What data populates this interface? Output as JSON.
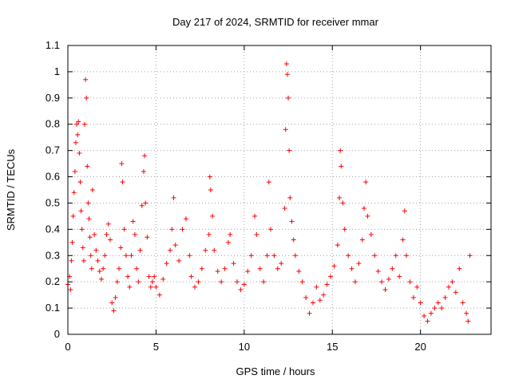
{
  "chart_data": {
    "type": "scatter",
    "title": "Day 217 of 2024, SRMTID for receiver mmar",
    "xlabel": "GPS time / hours",
    "ylabel": "SRMTID / TECUs",
    "xlim": [
      0,
      24
    ],
    "ylim": [
      0,
      1.1
    ],
    "x_ticks": [
      0,
      5,
      10,
      15,
      20
    ],
    "x_tick_labels": [
      "0",
      "5",
      "10",
      "15",
      "20"
    ],
    "y_ticks": [
      0,
      0.1,
      0.2,
      0.3,
      0.4,
      0.5,
      0.6,
      0.7,
      0.8,
      0.9,
      1,
      1.1
    ],
    "y_tick_labels": [
      "0",
      "0.1",
      "0.2",
      "0.3",
      "0.4",
      "0.5",
      "0.6",
      "0.7",
      "0.8",
      "0.9",
      "1",
      "1.1"
    ],
    "grid": true,
    "marker": "+",
    "series": [
      {
        "name": "SRMTID",
        "color": "#ff0000",
        "points": [
          [
            0.0,
            0.19
          ],
          [
            0.1,
            0.22
          ],
          [
            0.15,
            0.17
          ],
          [
            0.2,
            0.28
          ],
          [
            0.25,
            0.35
          ],
          [
            0.3,
            0.45
          ],
          [
            0.35,
            0.54
          ],
          [
            0.4,
            0.62
          ],
          [
            0.45,
            0.73
          ],
          [
            0.5,
            0.8
          ],
          [
            0.55,
            0.76
          ],
          [
            0.6,
            0.81
          ],
          [
            0.65,
            0.69
          ],
          [
            0.7,
            0.58
          ],
          [
            0.75,
            0.47
          ],
          [
            0.8,
            0.4
          ],
          [
            0.85,
            0.33
          ],
          [
            0.9,
            0.28
          ],
          [
            0.95,
            0.8
          ],
          [
            1.0,
            0.97
          ],
          [
            1.05,
            0.9
          ],
          [
            1.1,
            0.64
          ],
          [
            1.15,
            0.5
          ],
          [
            1.2,
            0.44
          ],
          [
            1.25,
            0.37
          ],
          [
            1.3,
            0.3
          ],
          [
            1.35,
            0.25
          ],
          [
            1.4,
            0.55
          ],
          [
            1.5,
            0.38
          ],
          [
            1.6,
            0.32
          ],
          [
            1.7,
            0.28
          ],
          [
            1.8,
            0.24
          ],
          [
            1.9,
            0.21
          ],
          [
            2.0,
            0.25
          ],
          [
            2.1,
            0.3
          ],
          [
            2.2,
            0.38
          ],
          [
            2.3,
            0.42
          ],
          [
            2.4,
            0.36
          ],
          [
            2.5,
            0.12
          ],
          [
            2.6,
            0.09
          ],
          [
            2.7,
            0.14
          ],
          [
            2.8,
            0.2
          ],
          [
            2.9,
            0.25
          ],
          [
            3.0,
            0.33
          ],
          [
            3.05,
            0.65
          ],
          [
            3.1,
            0.58
          ],
          [
            3.2,
            0.4
          ],
          [
            3.3,
            0.3
          ],
          [
            3.4,
            0.22
          ],
          [
            3.5,
            0.18
          ],
          [
            3.6,
            0.3
          ],
          [
            3.7,
            0.43
          ],
          [
            3.8,
            0.38
          ],
          [
            3.9,
            0.25
          ],
          [
            4.0,
            0.2
          ],
          [
            4.1,
            0.32
          ],
          [
            4.2,
            0.49
          ],
          [
            4.3,
            0.62
          ],
          [
            4.35,
            0.68
          ],
          [
            4.4,
            0.5
          ],
          [
            4.5,
            0.37
          ],
          [
            4.6,
            0.22
          ],
          [
            4.7,
            0.18
          ],
          [
            4.8,
            0.2
          ],
          [
            4.9,
            0.22
          ],
          [
            5.0,
            0.18
          ],
          [
            5.2,
            0.15
          ],
          [
            5.4,
            0.21
          ],
          [
            5.6,
            0.27
          ],
          [
            5.8,
            0.32
          ],
          [
            5.9,
            0.4
          ],
          [
            6.0,
            0.52
          ],
          [
            6.1,
            0.34
          ],
          [
            6.3,
            0.28
          ],
          [
            6.5,
            0.4
          ],
          [
            6.7,
            0.44
          ],
          [
            6.9,
            0.3
          ],
          [
            7.0,
            0.22
          ],
          [
            7.2,
            0.18
          ],
          [
            7.4,
            0.2
          ],
          [
            7.6,
            0.25
          ],
          [
            7.8,
            0.32
          ],
          [
            8.0,
            0.38
          ],
          [
            8.05,
            0.6
          ],
          [
            8.1,
            0.55
          ],
          [
            8.2,
            0.45
          ],
          [
            8.3,
            0.32
          ],
          [
            8.5,
            0.24
          ],
          [
            8.7,
            0.2
          ],
          [
            8.9,
            0.25
          ],
          [
            9.1,
            0.35
          ],
          [
            9.2,
            0.38
          ],
          [
            9.4,
            0.27
          ],
          [
            9.6,
            0.2
          ],
          [
            9.8,
            0.17
          ],
          [
            10.0,
            0.19
          ],
          [
            10.2,
            0.24
          ],
          [
            10.4,
            0.3
          ],
          [
            10.6,
            0.45
          ],
          [
            10.7,
            0.38
          ],
          [
            10.9,
            0.25
          ],
          [
            11.1,
            0.2
          ],
          [
            11.3,
            0.3
          ],
          [
            11.4,
            0.58
          ],
          [
            11.5,
            0.4
          ],
          [
            11.7,
            0.3
          ],
          [
            11.9,
            0.25
          ],
          [
            12.1,
            0.27
          ],
          [
            12.3,
            0.48
          ],
          [
            12.35,
            0.78
          ],
          [
            12.4,
            1.03
          ],
          [
            12.45,
            0.99
          ],
          [
            12.5,
            0.9
          ],
          [
            12.55,
            0.7
          ],
          [
            12.6,
            0.52
          ],
          [
            12.7,
            0.43
          ],
          [
            12.8,
            0.36
          ],
          [
            12.9,
            0.3
          ],
          [
            13.1,
            0.24
          ],
          [
            13.3,
            0.2
          ],
          [
            13.5,
            0.14
          ],
          [
            13.7,
            0.08
          ],
          [
            13.9,
            0.12
          ],
          [
            14.1,
            0.18
          ],
          [
            14.3,
            0.13
          ],
          [
            14.5,
            0.15
          ],
          [
            14.7,
            0.19
          ],
          [
            14.9,
            0.22
          ],
          [
            15.1,
            0.26
          ],
          [
            15.3,
            0.34
          ],
          [
            15.4,
            0.52
          ],
          [
            15.45,
            0.7
          ],
          [
            15.5,
            0.64
          ],
          [
            15.6,
            0.5
          ],
          [
            15.7,
            0.4
          ],
          [
            15.9,
            0.3
          ],
          [
            16.1,
            0.25
          ],
          [
            16.3,
            0.2
          ],
          [
            16.5,
            0.27
          ],
          [
            16.7,
            0.36
          ],
          [
            16.8,
            0.48
          ],
          [
            16.9,
            0.58
          ],
          [
            17.0,
            0.45
          ],
          [
            17.2,
            0.38
          ],
          [
            17.4,
            0.3
          ],
          [
            17.6,
            0.24
          ],
          [
            17.8,
            0.2
          ],
          [
            18.0,
            0.17
          ],
          [
            18.2,
            0.21
          ],
          [
            18.4,
            0.25
          ],
          [
            18.6,
            0.3
          ],
          [
            18.8,
            0.22
          ],
          [
            19.0,
            0.36
          ],
          [
            19.1,
            0.47
          ],
          [
            19.2,
            0.3
          ],
          [
            19.4,
            0.2
          ],
          [
            19.6,
            0.14
          ],
          [
            19.8,
            0.18
          ],
          [
            20.0,
            0.12
          ],
          [
            20.2,
            0.07
          ],
          [
            20.4,
            0.05
          ],
          [
            20.6,
            0.08
          ],
          [
            20.8,
            0.1
          ],
          [
            21.0,
            0.12
          ],
          [
            21.2,
            0.1
          ],
          [
            21.4,
            0.14
          ],
          [
            21.6,
            0.18
          ],
          [
            21.8,
            0.2
          ],
          [
            22.0,
            0.16
          ],
          [
            22.2,
            0.25
          ],
          [
            22.4,
            0.12
          ],
          [
            22.6,
            0.08
          ],
          [
            22.7,
            0.05
          ],
          [
            22.8,
            0.3
          ]
        ]
      }
    ]
  }
}
